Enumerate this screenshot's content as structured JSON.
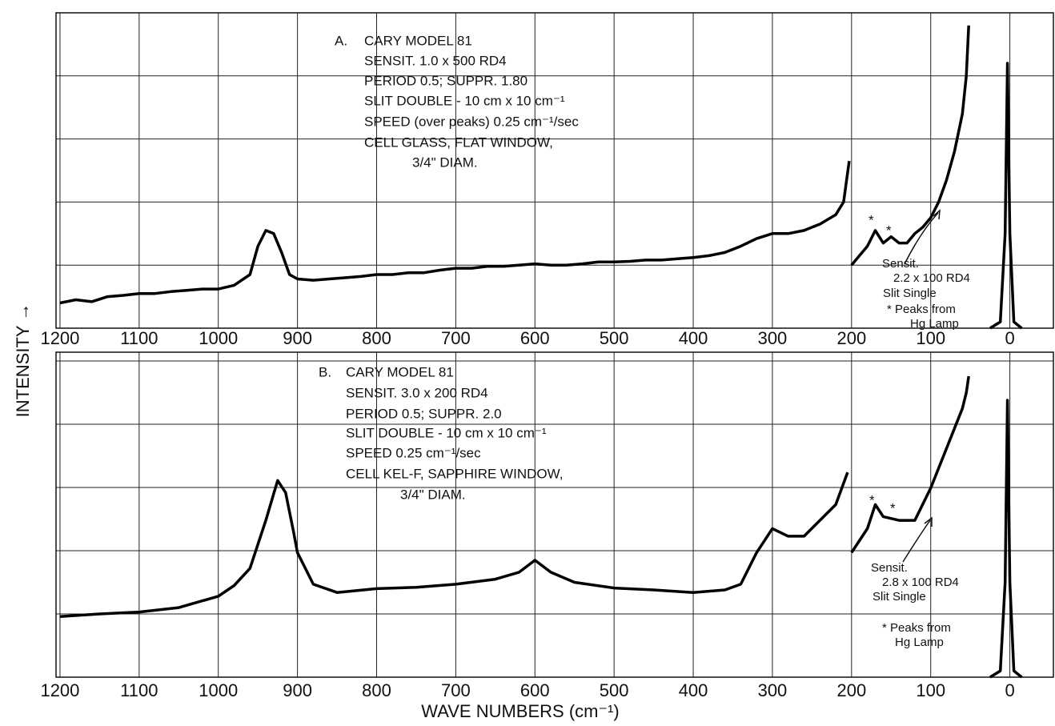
{
  "chart_data": [
    {
      "type": "line",
      "color": "#000000",
      "grid": true,
      "ylabel": "INTENSITY →",
      "annotation_lines": [
        "A.",
        "CARY MODEL 81",
        "SENSIT. 1.0 x 500 RD4",
        "PERIOD 0.5; SUPPR. 1.80",
        "SLIT DOUBLE - 10 cm x 10 cm⁻¹",
        "SPEED (over peaks) 0.25 cm⁻¹/sec",
        "CELL GLASS, FLAT WINDOW,",
        "3/4\" DIAM."
      ],
      "side_note": [
        "Sensit.",
        "2.2 x 100 RD4",
        "Slit Single",
        "* Peaks from",
        "Hg Lamp"
      ],
      "peak_markers": [
        "*",
        "*"
      ],
      "xlim": [
        1205,
        -55
      ],
      "xticks": [
        1200,
        1100,
        1000,
        900,
        800,
        700,
        600,
        500,
        400,
        300,
        200,
        100,
        0
      ],
      "ylim": [
        0,
        5
      ],
      "yticks": [
        0,
        1,
        2,
        3,
        4,
        5
      ],
      "x": [
        1200,
        1180,
        1160,
        1140,
        1120,
        1100,
        1080,
        1060,
        1040,
        1020,
        1000,
        980,
        960,
        950,
        940,
        930,
        920,
        910,
        900,
        880,
        860,
        840,
        820,
        800,
        780,
        760,
        740,
        720,
        700,
        680,
        660,
        640,
        620,
        600,
        580,
        560,
        540,
        520,
        500,
        480,
        460,
        440,
        420,
        400,
        380,
        360,
        340,
        320,
        300,
        280,
        260,
        240,
        220,
        210,
        203,
        201.5,
        200,
        190,
        180,
        170,
        160,
        150,
        140,
        130,
        120,
        110,
        100,
        90,
        80,
        70,
        60,
        55,
        52,
        40,
        25,
        12,
        6,
        3,
        0,
        -5,
        -15
      ],
      "values": [
        0.4,
        0.45,
        0.42,
        0.5,
        0.52,
        0.55,
        0.55,
        0.58,
        0.6,
        0.62,
        0.62,
        0.68,
        0.85,
        1.3,
        1.55,
        1.5,
        1.2,
        0.85,
        0.78,
        0.76,
        0.78,
        0.8,
        0.82,
        0.85,
        0.85,
        0.88,
        0.88,
        0.92,
        0.95,
        0.95,
        0.98,
        0.98,
        1.0,
        1.02,
        1.0,
        1.0,
        1.02,
        1.05,
        1.05,
        1.06,
        1.08,
        1.08,
        1.1,
        1.12,
        1.15,
        1.2,
        1.3,
        1.42,
        1.5,
        1.5,
        1.55,
        1.65,
        1.8,
        2.0,
        2.65,
        null,
        1.0,
        1.15,
        1.3,
        1.55,
        1.35,
        1.45,
        1.35,
        1.35,
        1.5,
        1.6,
        1.75,
        2.0,
        2.35,
        2.8,
        3.4,
        4.0,
        4.8,
        null,
        0.0,
        0.1,
        1.5,
        4.2,
        1.5,
        0.1,
        0.0
      ]
    },
    {
      "type": "line",
      "color": "#000000",
      "grid": true,
      "xlabel": "WAVE NUMBERS (cm⁻¹)",
      "annotation_lines": [
        "B.",
        "CARY MODEL 81",
        "SENSIT. 3.0 x 200 RD4",
        "PERIOD 0.5; SUPPR. 2.0",
        "SLIT DOUBLE - 10 cm x 10 cm⁻¹",
        "SPEED 0.25 cm⁻¹/sec",
        "CELL KEL-F, SAPPHIRE WINDOW,",
        "3/4\" DIAM."
      ],
      "side_note": [
        "Sensit.",
        "2.8 x 100 RD4",
        "Slit Single",
        "* Peaks from",
        "Hg Lamp"
      ],
      "peak_markers": [
        "*",
        "*"
      ],
      "xlim": [
        1205,
        -55
      ],
      "xticks": [
        1200,
        1100,
        1000,
        900,
        800,
        700,
        600,
        500,
        400,
        300,
        200,
        100,
        0
      ],
      "ylim": [
        0,
        5.14
      ],
      "yticks": [
        0,
        1,
        2,
        3,
        4,
        5
      ],
      "x": [
        1200,
        1150,
        1100,
        1050,
        1000,
        980,
        960,
        950,
        940,
        930,
        925,
        915,
        905,
        900,
        880,
        850,
        800,
        750,
        700,
        650,
        620,
        600,
        580,
        550,
        500,
        450,
        400,
        360,
        340,
        320,
        300,
        280,
        260,
        240,
        220,
        205,
        202,
        200,
        180,
        170,
        160,
        140,
        120,
        100,
        80,
        60,
        55,
        52,
        40,
        25,
        12,
        6,
        3,
        0,
        -5,
        -15
      ],
      "values": [
        0.96,
        1.0,
        1.03,
        1.1,
        1.28,
        1.45,
        1.72,
        2.1,
        2.48,
        2.9,
        3.11,
        2.92,
        2.3,
        1.97,
        1.47,
        1.34,
        1.4,
        1.42,
        1.47,
        1.55,
        1.66,
        1.85,
        1.66,
        1.5,
        1.41,
        1.38,
        1.34,
        1.38,
        1.47,
        1.97,
        2.35,
        2.23,
        2.23,
        2.48,
        2.73,
        3.24,
        null,
        1.97,
        2.35,
        2.73,
        2.54,
        2.48,
        2.48,
        2.99,
        3.62,
        4.25,
        4.5,
        4.76,
        null,
        0.0,
        0.1,
        1.5,
        4.38,
        1.5,
        0.1,
        0.0
      ]
    }
  ]
}
